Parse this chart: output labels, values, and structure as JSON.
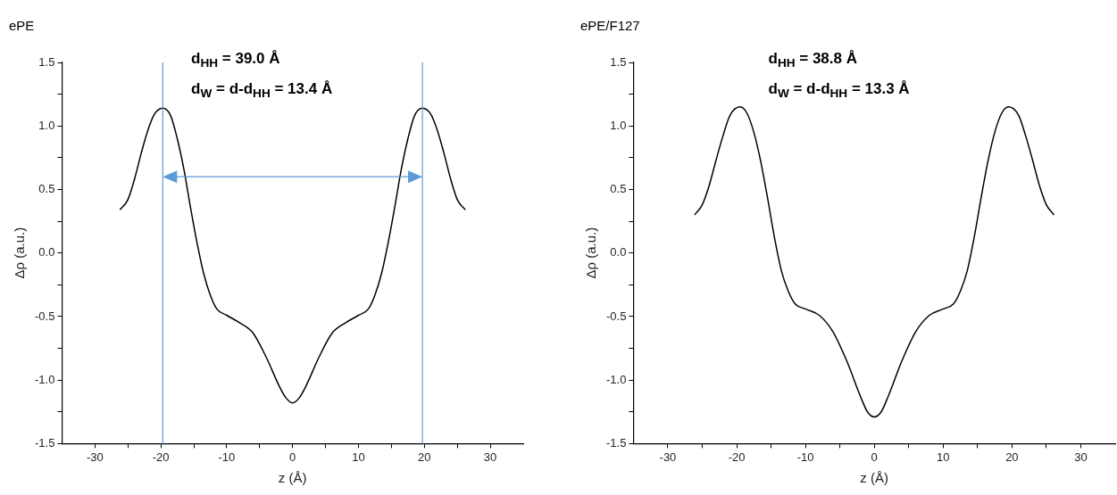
{
  "chart_data": [
    {
      "type": "line",
      "title": "ePE",
      "xlabel": "z (Å)",
      "ylabel": "Δρ (a.u.)",
      "annotations": [
        "d$_{HH}$ = 39.0 Å",
        "d$_{W}$ = d-d$_{HH}$ = 13.4 Å"
      ],
      "x": [
        -26.2,
        -25,
        -24,
        -23,
        -22,
        -21,
        -19.7,
        -18.5,
        -17.5,
        -16.5,
        -15.5,
        -14.5,
        -13.5,
        -12.5,
        -11.5,
        -10,
        -8,
        -6,
        -4,
        -2,
        -1,
        0,
        1,
        2,
        4,
        6,
        8,
        10,
        11.5,
        12.5,
        13.5,
        14.5,
        15.5,
        16.5,
        17.5,
        18.5,
        19.7,
        21,
        22,
        23,
        24,
        25,
        26.2
      ],
      "series": [
        {
          "color": "#000000",
          "values": [
            0.34,
            0.42,
            0.58,
            0.78,
            0.96,
            1.09,
            1.14,
            1.08,
            0.9,
            0.66,
            0.36,
            0.08,
            -0.16,
            -0.33,
            -0.44,
            -0.49,
            -0.55,
            -0.63,
            -0.82,
            -1.05,
            -1.14,
            -1.18,
            -1.14,
            -1.05,
            -0.82,
            -0.63,
            -0.55,
            -0.49,
            -0.44,
            -0.33,
            -0.16,
            0.08,
            0.36,
            0.66,
            0.9,
            1.08,
            1.14,
            1.09,
            0.96,
            0.78,
            0.58,
            0.42,
            0.34
          ]
        }
      ],
      "ref_lines": [
        {
          "axis": "x",
          "value": -19.7,
          "color": "#5b9bd5"
        },
        {
          "axis": "x",
          "value": 19.7,
          "color": "#5b9bd5"
        }
      ],
      "xlim": [
        -35,
        35
      ],
      "xticks": [
        -30,
        {
          "value": -25,
          "label": null
        },
        -20,
        {
          "value": -15,
          "label": null
        },
        -10,
        {
          "value": -5,
          "label": null
        },
        0,
        {
          "value": 5,
          "label": null
        },
        10,
        {
          "value": 15,
          "label": null
        },
        20,
        {
          "value": 25,
          "label": null
        },
        30
      ],
      "ylim": [
        -1.5,
        1.5
      ],
      "yticks": [
        {
          "value": -1.5,
          "label": "-1.5"
        },
        {
          "value": -1.25,
          "label": null
        },
        {
          "value": -1,
          "label": "-1.0"
        },
        {
          "value": -0.75,
          "label": null
        },
        {
          "value": -0.5,
          "label": "-0.5"
        },
        {
          "value": -0.25,
          "label": null
        },
        {
          "value": 0,
          "label": "0.0"
        },
        {
          "value": 0.25,
          "label": null
        },
        {
          "value": 0.5,
          "label": "0.5"
        },
        {
          "value": 0.75,
          "label": null
        },
        {
          "value": 1,
          "label": "1.0"
        },
        {
          "value": 1.25,
          "label": null
        },
        {
          "value": 1.5,
          "label": "1.5"
        }
      ],
      "grid": false,
      "legend": false,
      "marker": "none",
      "line_style": "solid"
    },
    {
      "type": "line",
      "title": "ePE/F127",
      "xlabel": "z (Å)",
      "ylabel": "Δρ (a.u.)",
      "annotations": [
        "d$_{HH}$ = 38.8 Å",
        "d$_{W}$ = d-d$_{HH}$ = 13.3 Å"
      ],
      "x": [
        -26.1,
        -25,
        -24,
        -23,
        -22,
        -21,
        -19.5,
        -18.5,
        -17.5,
        -16.5,
        -15.5,
        -14.5,
        -13.5,
        -12.5,
        -11.5,
        -10,
        -8,
        -6,
        -4,
        -2,
        -1,
        0,
        1,
        2,
        4,
        6,
        8,
        10,
        11.5,
        12.5,
        13.5,
        14.5,
        15.5,
        16.5,
        17.5,
        18.5,
        19.5,
        21,
        22,
        23,
        24,
        25,
        26.1
      ],
      "series": [
        {
          "color": "#000000",
          "values": [
            0.3,
            0.38,
            0.53,
            0.73,
            0.92,
            1.08,
            1.15,
            1.1,
            0.95,
            0.72,
            0.43,
            0.12,
            -0.14,
            -0.3,
            -0.4,
            -0.44,
            -0.49,
            -0.62,
            -0.85,
            -1.13,
            -1.25,
            -1.29,
            -1.25,
            -1.13,
            -0.85,
            -0.62,
            -0.49,
            -0.44,
            -0.4,
            -0.3,
            -0.14,
            0.12,
            0.43,
            0.72,
            0.95,
            1.1,
            1.15,
            1.08,
            0.92,
            0.73,
            0.53,
            0.38,
            0.3
          ]
        }
      ],
      "xlim": [
        -35,
        35
      ],
      "xticks": [
        -30,
        {
          "value": -25,
          "label": null
        },
        -20,
        {
          "value": -15,
          "label": null
        },
        -10,
        {
          "value": -5,
          "label": null
        },
        0,
        {
          "value": 5,
          "label": null
        },
        10,
        {
          "value": 15,
          "label": null
        },
        20,
        {
          "value": 25,
          "label": null
        },
        30
      ],
      "ylim": [
        -1.5,
        1.5
      ],
      "yticks": [
        {
          "value": -1.5,
          "label": "-1.5"
        },
        {
          "value": -1.25,
          "label": null
        },
        {
          "value": -1,
          "label": "-1.0"
        },
        {
          "value": -0.75,
          "label": null
        },
        {
          "value": -0.5,
          "label": "-0.5"
        },
        {
          "value": -0.25,
          "label": null
        },
        {
          "value": 0,
          "label": "0.0"
        },
        {
          "value": 0.25,
          "label": null
        },
        {
          "value": 0.5,
          "label": "0.5"
        },
        {
          "value": 0.75,
          "label": null
        },
        {
          "value": 1,
          "label": "1.0"
        },
        {
          "value": 1.25,
          "label": null
        },
        {
          "value": 1.5,
          "label": "1.5"
        }
      ],
      "grid": false,
      "legend": false,
      "marker": "none",
      "line_style": "solid"
    }
  ]
}
